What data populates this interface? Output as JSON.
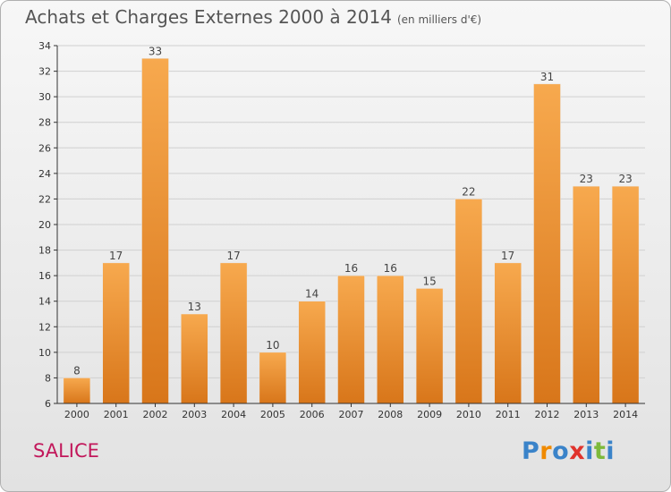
{
  "header": {
    "title": "Achats et Charges Externes 2000 à 2014",
    "unit": "(en milliers d'€)"
  },
  "footer": {
    "town": "SALICE",
    "brand": "Proxiti",
    "brand_letters": [
      {
        "char": "P",
        "color": "#3a83c9"
      },
      {
        "char": "r",
        "color": "#f08a00"
      },
      {
        "char": "o",
        "color": "#3a83c9"
      },
      {
        "char": "x",
        "color": "#e0332c"
      },
      {
        "char": "i",
        "color": "#3a83c9"
      },
      {
        "char": "t",
        "color": "#7db93b"
      },
      {
        "char": "i",
        "color": "#3a83c9"
      }
    ]
  },
  "colors": {
    "bar_top": "#f7a94e",
    "bar_bottom": "#d8761a",
    "axis": "#333333",
    "grid": "#d0d0d0"
  },
  "chart_data": {
    "type": "bar",
    "categories": [
      "2000",
      "2001",
      "2002",
      "2003",
      "2004",
      "2005",
      "2006",
      "2007",
      "2008",
      "2009",
      "2010",
      "2011",
      "2012",
      "2013",
      "2014"
    ],
    "values": [
      8,
      17,
      33,
      13,
      17,
      10,
      14,
      16,
      16,
      15,
      22,
      17,
      31,
      23,
      23
    ],
    "ylim": [
      6,
      34
    ],
    "yticks": [
      6,
      8,
      10,
      12,
      14,
      16,
      18,
      20,
      22,
      24,
      26,
      28,
      30,
      32,
      34
    ],
    "grid": true,
    "legend": false,
    "title": "Achats et Charges Externes 2000 à 2014",
    "xlabel": "",
    "ylabel": ""
  }
}
